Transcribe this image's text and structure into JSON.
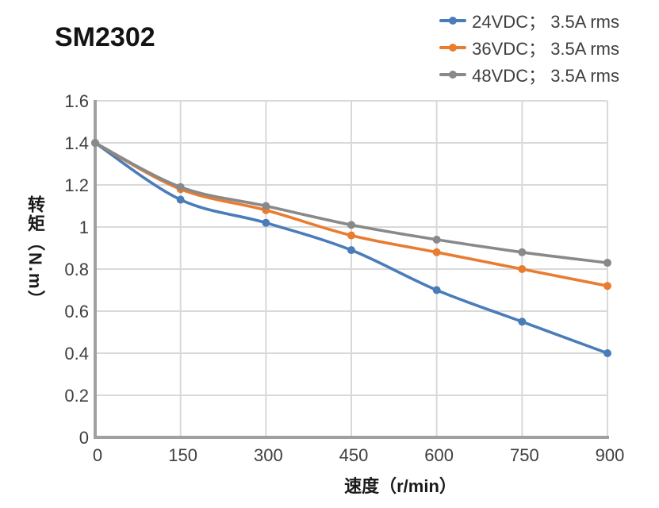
{
  "title": "SM2302",
  "chart_data": {
    "type": "line",
    "x": [
      0,
      150,
      300,
      450,
      600,
      750,
      900
    ],
    "series": [
      {
        "name": "24VDC； 3.5A rms",
        "color": "#4a7cba",
        "values": [
          1.4,
          1.13,
          1.02,
          0.89,
          0.7,
          0.55,
          0.4
        ]
      },
      {
        "name": "36VDC； 3.5A rms",
        "color": "#e97c30",
        "values": [
          1.4,
          1.18,
          1.08,
          0.96,
          0.88,
          0.8,
          0.72
        ]
      },
      {
        "name": "48VDC； 3.5A rms",
        "color": "#898989",
        "values": [
          1.4,
          1.19,
          1.1,
          1.01,
          0.94,
          0.88,
          0.83
        ]
      }
    ],
    "xlabel": "速度（r/min）",
    "ylabel": "转矩（N.m）",
    "xlim": [
      0,
      900
    ],
    "ylim": [
      0,
      1.6
    ],
    "x_ticks": [
      0,
      150,
      300,
      450,
      600,
      750,
      900
    ],
    "x_tick_labels": [
      "0",
      "150",
      "300",
      "450",
      "600",
      "750",
      "900"
    ],
    "y_ticks": [
      0,
      0.2,
      0.4,
      0.6,
      0.8,
      1,
      1.2,
      1.4,
      1.6
    ],
    "y_tick_labels": [
      "0",
      "0.2",
      "0.4",
      "0.6",
      "0.8",
      "1",
      "1.2",
      "1.4",
      "1.6"
    ],
    "grid": true,
    "smooth": true,
    "legend_position": "top-right",
    "grid_color": "#d9d9d9",
    "axis_color": "#a0a0a0",
    "tick_color": "#3f3f3f",
    "background": "#ffffff"
  }
}
